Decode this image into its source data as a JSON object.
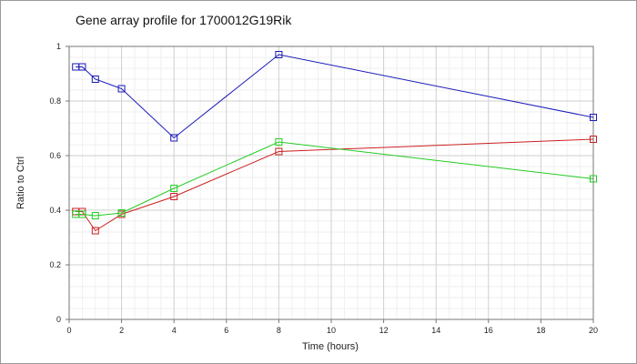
{
  "chart_data": {
    "type": "line",
    "title": "Gene array profile for 1700012G19Rik",
    "xlabel": "Time (hours)",
    "ylabel": "Ratio to Ctrl",
    "xlim": [
      0,
      20
    ],
    "ylim": [
      0,
      1
    ],
    "x_ticks": [
      0,
      2,
      4,
      6,
      8,
      10,
      12,
      14,
      16,
      18,
      20
    ],
    "y_ticks": [
      0,
      0.2,
      0.4,
      0.6,
      0.8,
      1
    ],
    "y_tick_labels": [
      "0",
      "0.2",
      "0.4",
      "0.6",
      "0.8",
      "1"
    ],
    "grid": true,
    "marker": "square",
    "series": [
      {
        "color": "#1a1ab8",
        "points": [
          [
            0.25,
            0.925
          ],
          [
            0.5,
            0.925
          ],
          [
            1,
            0.88
          ],
          [
            2,
            0.845
          ],
          [
            4,
            0.665
          ],
          [
            8,
            0.97
          ],
          [
            20,
            0.74
          ]
        ]
      },
      {
        "color": "#cc2020",
        "points": [
          [
            0.25,
            0.395
          ],
          [
            0.5,
            0.395
          ],
          [
            1,
            0.325
          ],
          [
            2,
            0.385
          ],
          [
            4,
            0.45
          ],
          [
            8,
            0.615
          ],
          [
            20,
            0.66
          ]
        ]
      },
      {
        "color": "#22cc22",
        "points": [
          [
            0.25,
            0.385
          ],
          [
            0.5,
            0.385
          ],
          [
            1,
            0.38
          ],
          [
            2,
            0.39
          ],
          [
            4,
            0.48
          ],
          [
            8,
            0.65
          ],
          [
            20,
            0.515
          ]
        ]
      }
    ]
  }
}
